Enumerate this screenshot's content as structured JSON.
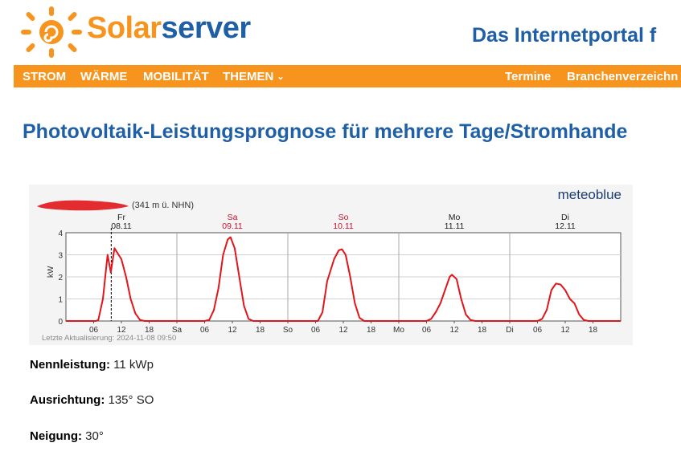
{
  "site": {
    "brand_part1": "Solar",
    "brand_part2": "server",
    "tagline": "Das Internetportal f",
    "colors": {
      "orange": "#f7941d",
      "blue": "#1f5fa6"
    }
  },
  "nav": {
    "left": [
      "STROM",
      "WÄRME",
      "MOBILITÄT",
      "THEMEN"
    ],
    "right": [
      "Termine",
      "Branchenverzeichn"
    ]
  },
  "page": {
    "title": "Photovoltaik-Leistungsprognose für mehrere Tage/Stromhande"
  },
  "chart_data": {
    "type": "line",
    "brand": "meteoblue",
    "location_suffix": "(341 m ü. NHN)",
    "ylabel": "kW",
    "ylim": [
      0,
      4
    ],
    "yticks": [
      "0",
      "1",
      "2",
      "3",
      "4"
    ],
    "days": [
      {
        "name": "Fr",
        "date": "08.11",
        "weekend": false
      },
      {
        "name": "Sa",
        "date": "09.11",
        "weekend": true
      },
      {
        "name": "So",
        "date": "10.11",
        "weekend": true
      },
      {
        "name": "Mo",
        "date": "11.11",
        "weekend": false
      },
      {
        "name": "Di",
        "date": "12.11",
        "weekend": false
      }
    ],
    "xticks": [
      "06",
      "12",
      "18",
      "Sa",
      "06",
      "12",
      "18",
      "So",
      "06",
      "12",
      "18",
      "Mo",
      "06",
      "12",
      "18",
      "Di",
      "06",
      "12",
      "18"
    ],
    "footer": "Letzte Aktualisierung: 2024-11-08 09:50",
    "current_time_hours": 9.8,
    "series": [
      {
        "color": "#e0161b",
        "points": [
          [
            0,
            0
          ],
          [
            6.5,
            0
          ],
          [
            7,
            0.05
          ],
          [
            8,
            1
          ],
          [
            9,
            3
          ],
          [
            9.7,
            2.2
          ],
          [
            10.5,
            3.3
          ],
          [
            12,
            2.8
          ],
          [
            13,
            2
          ],
          [
            14,
            1
          ],
          [
            15,
            0.35
          ],
          [
            16,
            0.05
          ],
          [
            17,
            0
          ],
          [
            24,
            0
          ],
          [
            30,
            0
          ],
          [
            31,
            0.05
          ],
          [
            32,
            0.5
          ],
          [
            33,
            1.5
          ],
          [
            34,
            3
          ],
          [
            35,
            3.7
          ],
          [
            35.6,
            3.8
          ],
          [
            36.5,
            3.3
          ],
          [
            37.5,
            2
          ],
          [
            38.5,
            0.7
          ],
          [
            39.5,
            0.1
          ],
          [
            40.5,
            0
          ],
          [
            48,
            0
          ],
          [
            54.5,
            0
          ],
          [
            55.5,
            0.4
          ],
          [
            56.5,
            1.8
          ],
          [
            58,
            2.8
          ],
          [
            59,
            3.2
          ],
          [
            59.7,
            3.25
          ],
          [
            60.5,
            3
          ],
          [
            61.5,
            2
          ],
          [
            62.5,
            0.8
          ],
          [
            63.5,
            0.15
          ],
          [
            64.5,
            0
          ],
          [
            72,
            0
          ],
          [
            78,
            0
          ],
          [
            79,
            0.1
          ],
          [
            80,
            0.4
          ],
          [
            81,
            0.8
          ],
          [
            82,
            1.4
          ],
          [
            83,
            2
          ],
          [
            83.5,
            2.1
          ],
          [
            84.5,
            1.9
          ],
          [
            85.5,
            1
          ],
          [
            86.5,
            0.3
          ],
          [
            87.5,
            0.05
          ],
          [
            88.5,
            0
          ],
          [
            96,
            0
          ],
          [
            102,
            0
          ],
          [
            103,
            0.1
          ],
          [
            104,
            0.5
          ],
          [
            105,
            1.4
          ],
          [
            106,
            1.7
          ],
          [
            107,
            1.65
          ],
          [
            108,
            1.4
          ],
          [
            109,
            1
          ],
          [
            110,
            0.8
          ],
          [
            111,
            0.3
          ],
          [
            112,
            0.05
          ],
          [
            113,
            0
          ],
          [
            120,
            0
          ]
        ]
      }
    ]
  },
  "details": [
    {
      "label": "Nennleistung:",
      "value": "11 kWp"
    },
    {
      "label": "Ausrichtung:",
      "value": "135° SO"
    },
    {
      "label": "Neigung:",
      "value": "30°"
    }
  ]
}
